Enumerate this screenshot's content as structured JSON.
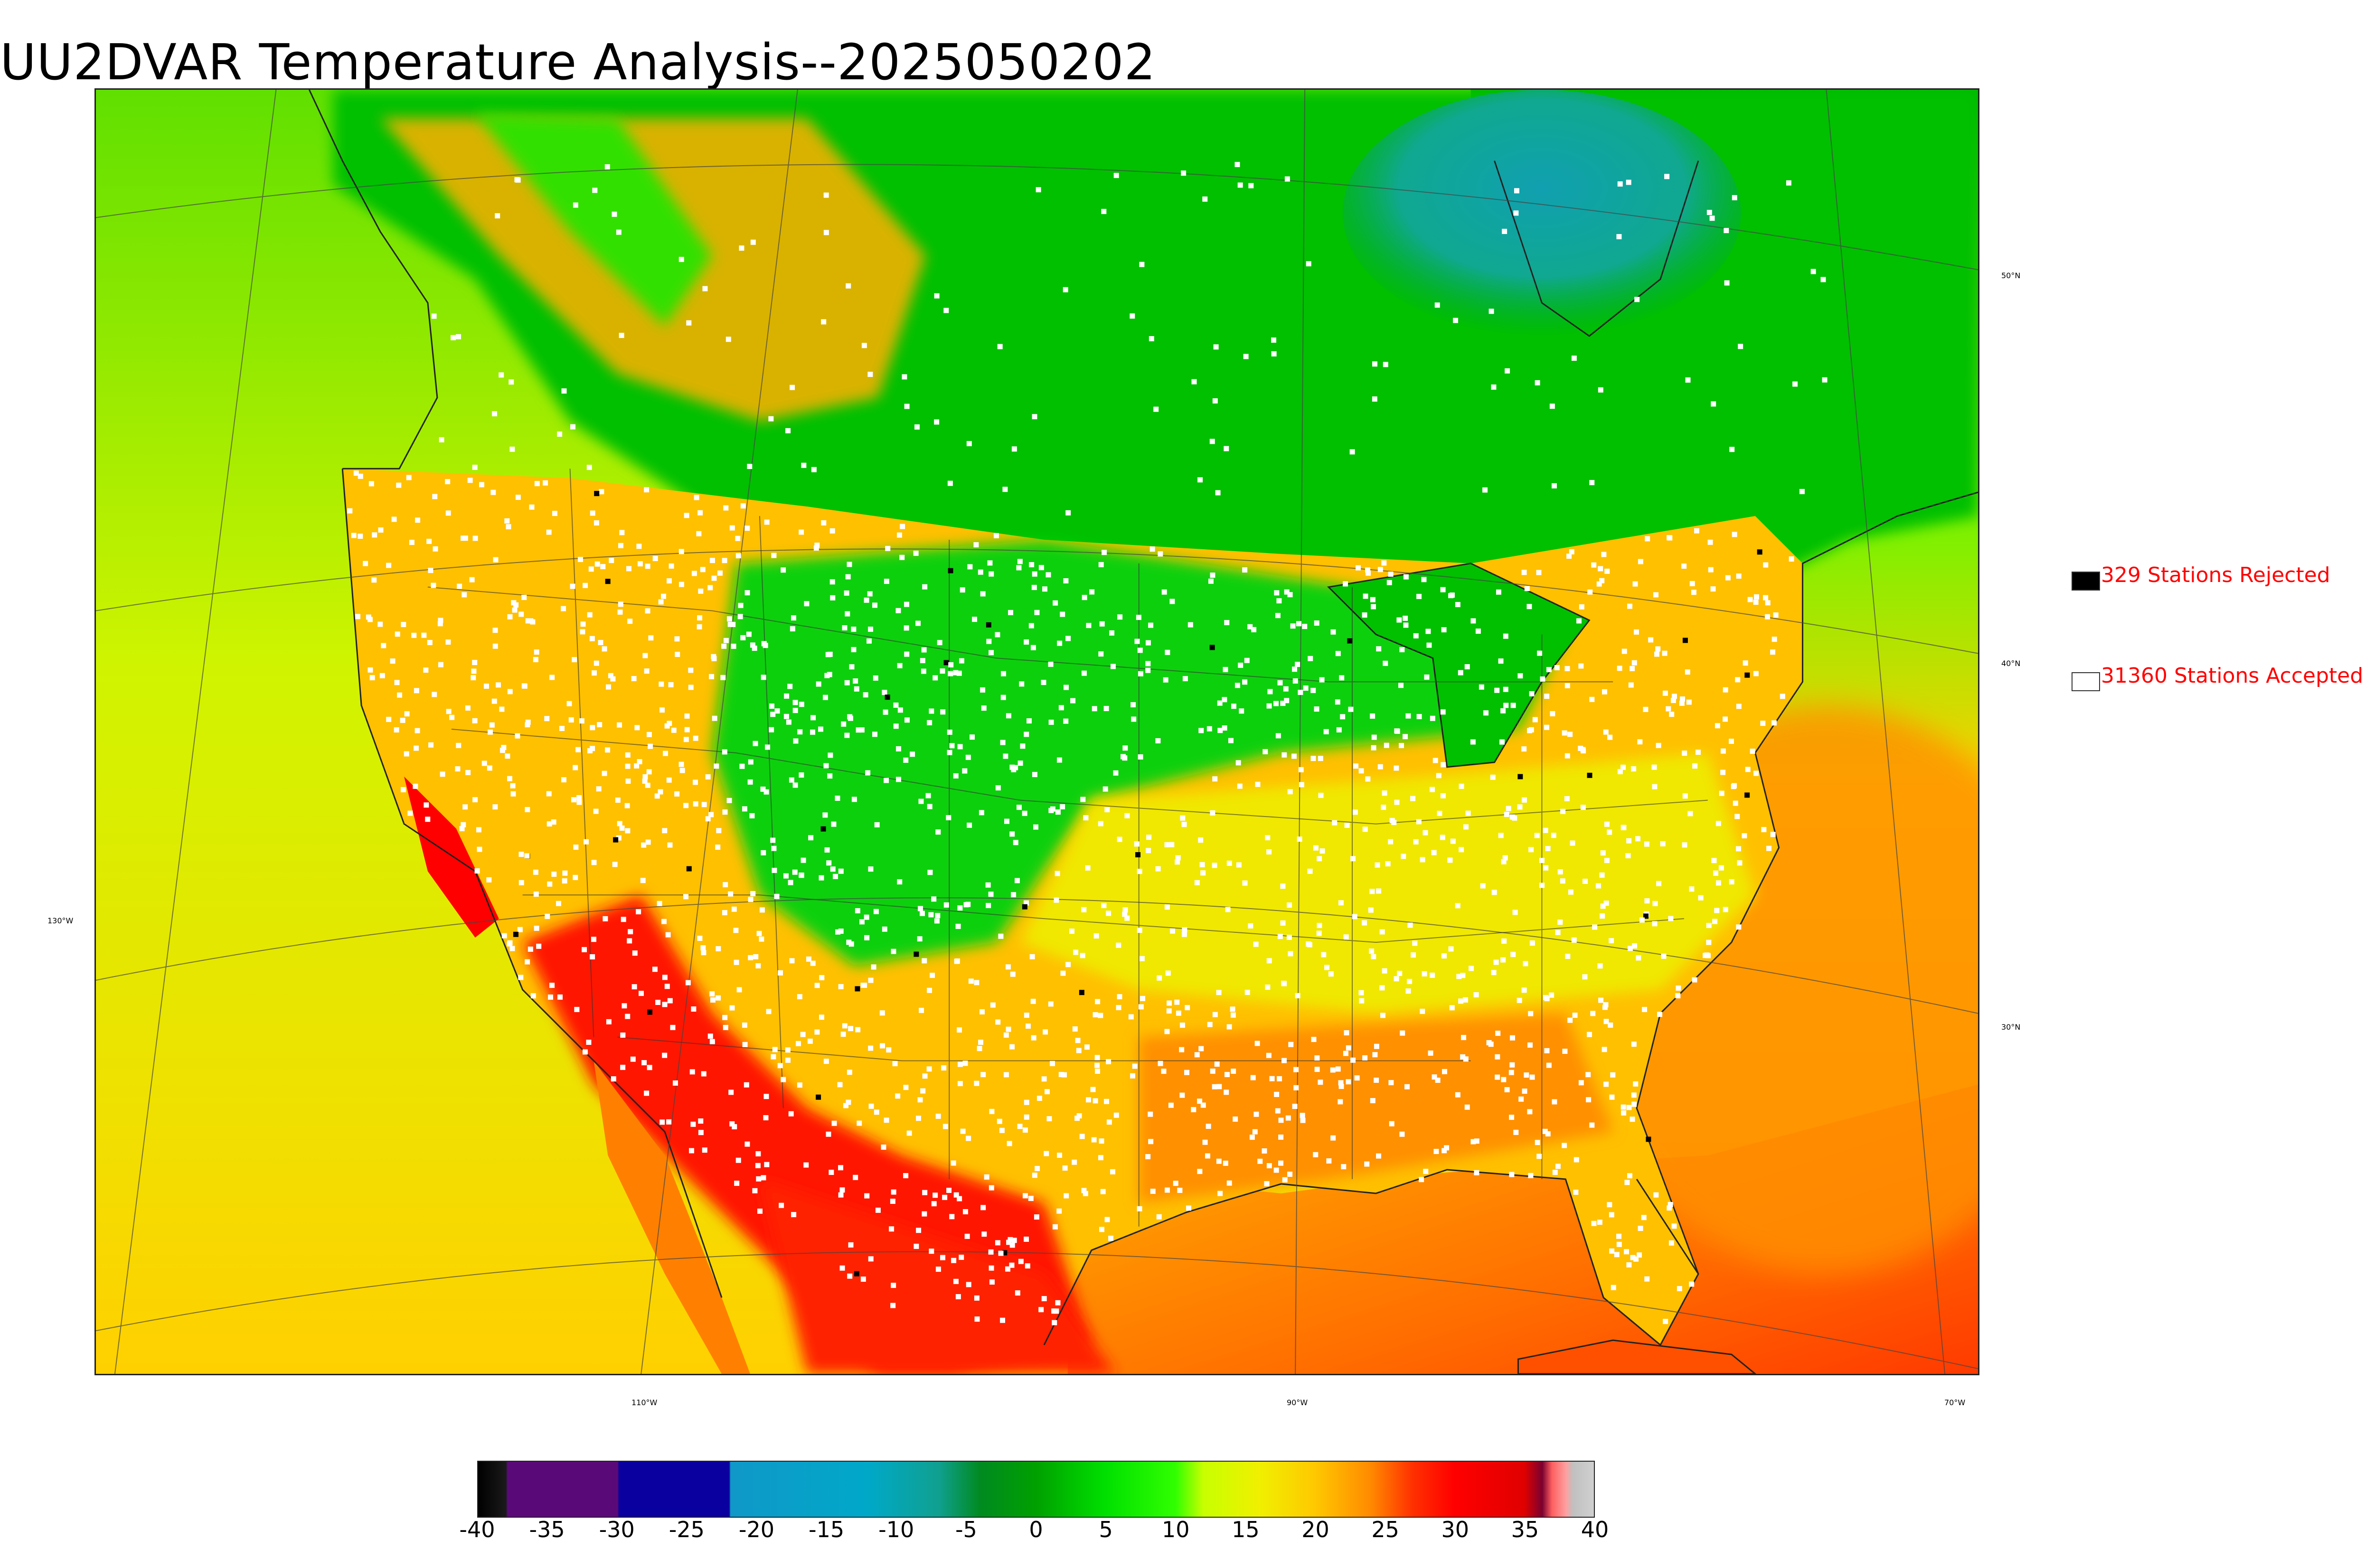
{
  "title": "UU2DVAR Temperature Analysis--2025050202",
  "legend": {
    "rejected": {
      "label": "329 Stations Rejected",
      "color": "#000000"
    },
    "accepted": {
      "label": "31360 Stations Accepted",
      "color": "#ffffff"
    }
  },
  "gridlines": {
    "longitude_labels": [
      "130°W",
      "110°W",
      "90°W",
      "70°W"
    ],
    "latitude_labels": [
      "50°N",
      "40°N",
      "30°N"
    ]
  },
  "colorbar": {
    "min": -40,
    "max": 40,
    "ticks": [
      "-40",
      "-35",
      "-30",
      "-25",
      "-20",
      "-15",
      "-10",
      "-5",
      "0",
      "5",
      "10",
      "15",
      "20",
      "25",
      "30",
      "35",
      "40"
    ],
    "stops": [
      {
        "v": -40,
        "c": "#000000"
      },
      {
        "v": -38,
        "c": "#1a1a1a"
      },
      {
        "v": -37.9,
        "c": "#5a0a78"
      },
      {
        "v": -30,
        "c": "#5a0a78"
      },
      {
        "v": -29.9,
        "c": "#0a00a0"
      },
      {
        "v": -22,
        "c": "#0a00a0"
      },
      {
        "v": -21.9,
        "c": "#1098c8"
      },
      {
        "v": -12,
        "c": "#00a8c8"
      },
      {
        "v": -7,
        "c": "#10a090"
      },
      {
        "v": -4,
        "c": "#008a20"
      },
      {
        "v": 0,
        "c": "#00a000"
      },
      {
        "v": 5,
        "c": "#00e000"
      },
      {
        "v": 10,
        "c": "#30ff00"
      },
      {
        "v": 12,
        "c": "#c8ff00"
      },
      {
        "v": 16,
        "c": "#f0f000"
      },
      {
        "v": 20,
        "c": "#ffc800"
      },
      {
        "v": 24,
        "c": "#ff8a00"
      },
      {
        "v": 27,
        "c": "#ff3000"
      },
      {
        "v": 30,
        "c": "#ff0000"
      },
      {
        "v": 35,
        "c": "#e00000"
      },
      {
        "v": 36.3,
        "c": "#7a0030"
      },
      {
        "v": 37,
        "c": "#ff6060"
      },
      {
        "v": 38,
        "c": "#ffa0a0"
      },
      {
        "v": 38.5,
        "c": "#c0c0c0"
      },
      {
        "v": 40,
        "c": "#d0d0d0"
      }
    ]
  },
  "map_colors": {
    "ocean_pacific": "#d9f200",
    "ocean_gulf": "#ff6a00",
    "canada": "#00c800",
    "hudson": "#10a8a0",
    "rockies": "#30e000",
    "plains_green": "#10d010",
    "south_warm": "#ffb000",
    "desert_hot": "#ff2000",
    "coast_line": "#222222",
    "grid_line": "#444444"
  }
}
